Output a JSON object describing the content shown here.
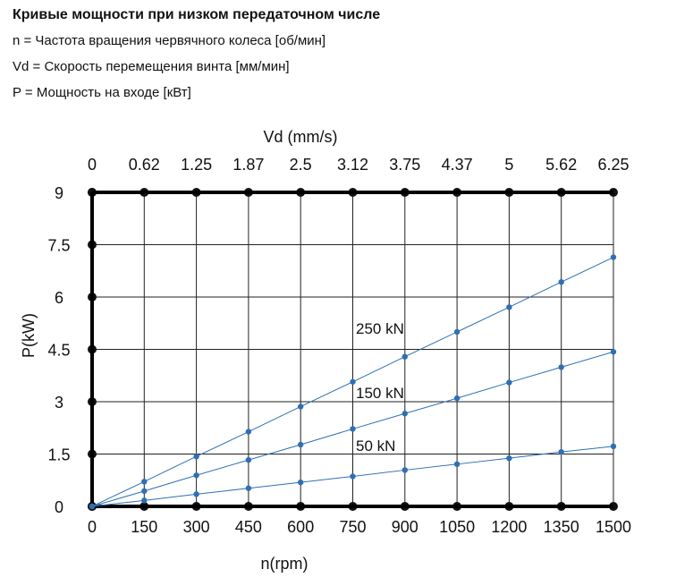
{
  "header": {
    "title": "Кривые мощности при низком передаточном числе",
    "lines": [
      "n = Частота вращения червячного колеса [об/мин]",
      "Vd = Скорость перемещения винта [мм/мин]",
      "P = Мощность на входе [кВт]"
    ]
  },
  "chart_data": {
    "type": "line",
    "xlabel": "n(rpm)",
    "ylabel": "P(kW)",
    "x2label": "Vd (mm/s)",
    "xlim": [
      0,
      1500
    ],
    "ylim": [
      0,
      9
    ],
    "x_ticks": [
      "0",
      "150",
      "300",
      "450",
      "600",
      "750",
      "900",
      "1050",
      "1200",
      "1350",
      "1500"
    ],
    "y_ticks": [
      "0",
      "1.5",
      "3",
      "4.5",
      "6",
      "7.5",
      "9"
    ],
    "x2_ticks": [
      "0",
      "0.62",
      "1.25",
      "1.87",
      "2.5",
      "3.12",
      "3.75",
      "4.37",
      "5",
      "5.62",
      "6.25"
    ],
    "grid": true,
    "line_color": "#2e6fb5",
    "x": [
      0,
      150,
      300,
      450,
      600,
      750,
      900,
      1050,
      1200,
      1350,
      1500
    ],
    "series": [
      {
        "name": "250 kN",
        "values": [
          0,
          0.71,
          1.43,
          2.14,
          2.86,
          3.57,
          4.29,
          5.0,
          5.71,
          6.43,
          7.14
        ]
      },
      {
        "name": "150 kN",
        "values": [
          0,
          0.44,
          0.89,
          1.33,
          1.77,
          2.22,
          2.66,
          3.1,
          3.55,
          3.99,
          4.43
        ]
      },
      {
        "name": "50 kN",
        "values": [
          0,
          0.17,
          0.35,
          0.52,
          0.69,
          0.86,
          1.04,
          1.21,
          1.38,
          1.56,
          1.72
        ]
      }
    ]
  }
}
